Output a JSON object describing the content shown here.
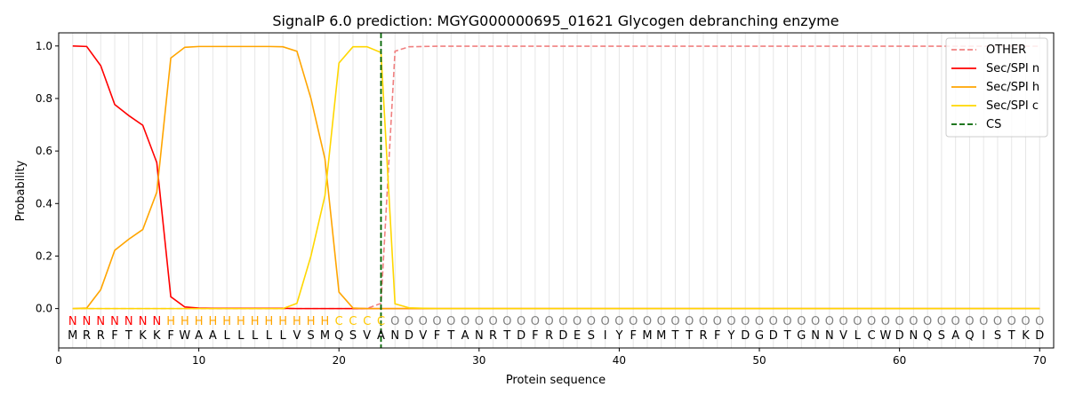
{
  "chart_data": {
    "type": "line",
    "title": "SignalP 6.0 prediction: MGYG000000695_01621 Glycogen debranching enzyme",
    "xlabel": "Protein sequence",
    "ylabel": "Probability",
    "xlim": [
      0,
      71
    ],
    "ylim": [
      -0.15,
      1.05
    ],
    "xticks": [
      0,
      10,
      20,
      30,
      40,
      50,
      60,
      70
    ],
    "yticks": [
      0.0,
      0.2,
      0.4,
      0.6,
      0.8,
      1.0
    ],
    "grid": "vertical lines at each residue",
    "legend_position": "top-right",
    "sequence": "MRRFTKKFWAALLLLLVSMQSVANDVFTANRTDFRDESIYFMMTTRFYDGDTGNNVLCWDNQSAQISTKD",
    "labels": "NNNNNNNHHHHHHHHHHHHCCCCOOOOOOOOOOOOOOOOOOOOOOOOOOOOOOOOOOOOOOOOOOOOOOO",
    "label_colors": {
      "N": "#ff0000",
      "H": "#ffa500",
      "C": "#ffc800",
      "O": "#808080"
    },
    "series": [
      {
        "name": "OTHER",
        "color": "#f08080",
        "dash": "dashed",
        "values": [
          0,
          0,
          0,
          0,
          0,
          0,
          0,
          0,
          0,
          0,
          0,
          0,
          0,
          0,
          0,
          0,
          0,
          0,
          0,
          0,
          0,
          0,
          0.02,
          0.98,
          0.997,
          0.998,
          0.999,
          0.999,
          0.999,
          0.999,
          0.999,
          0.999,
          0.999,
          0.999,
          0.999,
          0.999,
          0.999,
          0.999,
          0.999,
          0.999,
          0.999,
          0.999,
          0.999,
          0.999,
          0.999,
          0.999,
          0.999,
          0.999,
          0.999,
          0.999,
          0.999,
          0.999,
          0.999,
          0.999,
          0.999,
          0.999,
          0.999,
          0.999,
          0.999,
          0.999,
          0.999,
          0.999,
          0.999,
          0.999,
          0.999,
          0.999,
          0.999,
          0.999,
          0.999,
          0.999
        ]
      },
      {
        "name": "Sec/SPI n",
        "color": "#ff0000",
        "dash": "solid",
        "values": [
          1.0,
          0.998,
          0.925,
          0.777,
          0.735,
          0.698,
          0.556,
          0.045,
          0.006,
          0.002,
          0.001,
          0.001,
          0.001,
          0.001,
          0.001,
          0.001,
          0.0,
          0.0,
          0.0,
          0.0,
          0.0,
          0.0,
          0.0,
          0.0,
          0,
          0,
          0,
          0,
          0,
          0,
          0,
          0,
          0,
          0,
          0,
          0,
          0,
          0,
          0,
          0,
          0,
          0,
          0,
          0,
          0,
          0,
          0,
          0,
          0,
          0,
          0,
          0,
          0,
          0,
          0,
          0,
          0,
          0,
          0,
          0,
          0,
          0,
          0,
          0,
          0,
          0,
          0,
          0,
          0,
          0
        ]
      },
      {
        "name": "Sec/SPI h",
        "color": "#ffa500",
        "dash": "solid",
        "values": [
          0,
          0.002,
          0.072,
          0.222,
          0.264,
          0.301,
          0.443,
          0.954,
          0.995,
          0.998,
          0.998,
          0.998,
          0.998,
          0.998,
          0.998,
          0.997,
          0.98,
          0.8,
          0.57,
          0.063,
          0.002,
          0.0,
          0.0,
          0,
          0,
          0,
          0,
          0,
          0,
          0,
          0,
          0,
          0,
          0,
          0,
          0,
          0,
          0,
          0,
          0,
          0,
          0,
          0,
          0,
          0,
          0,
          0,
          0,
          0,
          0,
          0,
          0,
          0,
          0,
          0,
          0,
          0,
          0,
          0,
          0,
          0,
          0,
          0,
          0,
          0,
          0,
          0,
          0,
          0,
          0
        ]
      },
      {
        "name": "Sec/SPI c",
        "color": "#ffd700",
        "dash": "solid",
        "values": [
          0,
          0,
          0,
          0,
          0,
          0,
          0,
          0,
          0,
          0,
          0,
          0,
          0,
          0,
          0,
          0,
          0.02,
          0.2,
          0.43,
          0.935,
          0.997,
          0.997,
          0.975,
          0.018,
          0.003,
          0.001,
          0,
          0,
          0,
          0,
          0,
          0,
          0,
          0,
          0,
          0,
          0,
          0,
          0,
          0,
          0,
          0,
          0,
          0,
          0,
          0,
          0,
          0,
          0,
          0,
          0,
          0,
          0,
          0,
          0,
          0,
          0,
          0,
          0,
          0,
          0,
          0,
          0,
          0,
          0,
          0,
          0,
          0,
          0,
          0
        ]
      },
      {
        "name": "CS",
        "color": "#006400",
        "dash": "dashed",
        "x": 23
      }
    ]
  }
}
